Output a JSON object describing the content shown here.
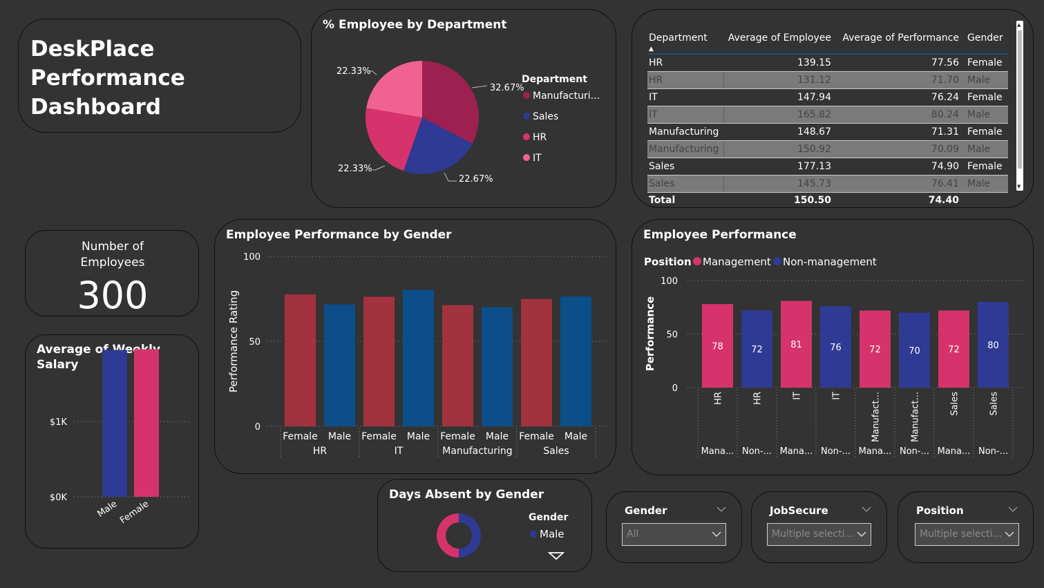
{
  "dashboard": {
    "title_line1": "DeskPlace Performance",
    "title_line2": "Dashboard"
  },
  "kpi": {
    "label_line1": "Number of",
    "label_line2": "Employees",
    "value": "300"
  },
  "colors": {
    "background": "#333333",
    "female": "#a3323f",
    "male": "#0b4e8a",
    "management": "#d6336c",
    "non_management": "#2e3a94",
    "manufacturing": "#9c2050",
    "sales": "#2e3a94",
    "hr": "#d6336c",
    "it": "#f06292"
  },
  "table": {
    "headers": [
      "Department",
      "Average of Employee",
      "Average of Performance",
      "Gender"
    ],
    "rows": [
      [
        "HR",
        "139.15",
        "77.56",
        "Female"
      ],
      [
        "HR",
        "131.12",
        "71.70",
        "Male"
      ],
      [
        "IT",
        "147.94",
        "76.24",
        "Female"
      ],
      [
        "IT",
        "165.82",
        "80.24",
        "Male"
      ],
      [
        "Manufacturing",
        "148.67",
        "71.31",
        "Female"
      ],
      [
        "Manufacturing",
        "150.92",
        "70.09",
        "Male"
      ],
      [
        "Sales",
        "177.13",
        "74.90",
        "Female"
      ],
      [
        "Sales",
        "145.73",
        "76.41",
        "Male"
      ]
    ],
    "total": [
      "Total",
      "150.50",
      "74.40",
      ""
    ]
  },
  "slicers": [
    {
      "title": "Gender",
      "value": "All"
    },
    {
      "title": "JobSecure",
      "value": "Multiple selecti..."
    },
    {
      "title": "Position",
      "value": "Multiple selecti..."
    }
  ],
  "chart_data": [
    {
      "id": "dept_pie",
      "type": "pie",
      "title": "% Employee by Department",
      "legend_title": "Department",
      "legend_position": "right",
      "slices": [
        {
          "label": "Manufacturing",
          "legend_label": "Manufacturi...",
          "value": 32.67,
          "data_label": "32.67%"
        },
        {
          "label": "Sales",
          "legend_label": "Sales",
          "value": 22.67,
          "data_label": "22.67%"
        },
        {
          "label": "HR",
          "legend_label": "HR",
          "value": 22.33,
          "data_label": "22.33%"
        },
        {
          "label": "IT",
          "legend_label": "IT",
          "value": 22.33,
          "data_label": "22.33%"
        }
      ]
    },
    {
      "id": "perf_gender",
      "type": "bar",
      "title": "Employee Performance by Gender",
      "ylabel": "Performance Rating",
      "ylim": [
        0,
        100
      ],
      "yticks": [
        0,
        50,
        100
      ],
      "grid": true,
      "groups": [
        "HR",
        "IT",
        "Manufacturing",
        "Sales"
      ],
      "bars": [
        {
          "group": "HR",
          "gender": "Female",
          "value": 77.56
        },
        {
          "group": "HR",
          "gender": "Male",
          "value": 71.7
        },
        {
          "group": "IT",
          "gender": "Female",
          "value": 76.24
        },
        {
          "group": "IT",
          "gender": "Male",
          "value": 80.24
        },
        {
          "group": "Manufacturing",
          "gender": "Female",
          "value": 71.31
        },
        {
          "group": "Manufacturing",
          "gender": "Male",
          "value": 70.09
        },
        {
          "group": "Sales",
          "gender": "Female",
          "value": 74.9
        },
        {
          "group": "Sales",
          "gender": "Male",
          "value": 76.41
        }
      ]
    },
    {
      "id": "perf_position",
      "type": "bar",
      "title": "Employee Performance",
      "legend_title": "Position",
      "legend": [
        "Management",
        "Non-management"
      ],
      "ylabel": "Performance",
      "ylim": [
        0,
        100
      ],
      "yticks": [
        0,
        50,
        100
      ],
      "grid": true,
      "bars": [
        {
          "dept": "HR",
          "position": "Management",
          "dept_label": "HR",
          "pos_label": "Mana...",
          "value": 78
        },
        {
          "dept": "HR",
          "position": "Non-management",
          "dept_label": "HR",
          "pos_label": "Non-...",
          "value": 72
        },
        {
          "dept": "IT",
          "position": "Management",
          "dept_label": "IT",
          "pos_label": "Mana...",
          "value": 81
        },
        {
          "dept": "IT",
          "position": "Non-management",
          "dept_label": "IT",
          "pos_label": "Non-...",
          "value": 76
        },
        {
          "dept": "Manufacturing",
          "position": "Management",
          "dept_label": "Manufact...",
          "pos_label": "Mana...",
          "value": 72
        },
        {
          "dept": "Manufacturing",
          "position": "Non-management",
          "dept_label": "Manufact...",
          "pos_label": "Non-...",
          "value": 70
        },
        {
          "dept": "Sales",
          "position": "Management",
          "dept_label": "Sales",
          "pos_label": "Mana...",
          "value": 72
        },
        {
          "dept": "Sales",
          "position": "Non-management",
          "dept_label": "Sales",
          "pos_label": "Non-...",
          "value": 80
        }
      ]
    },
    {
      "id": "weekly_salary",
      "type": "bar",
      "title": "Average of Weekly Salary",
      "categories": [
        "Male",
        "Female"
      ],
      "values": [
        1950,
        1960
      ],
      "yticks": [
        "$0K",
        "$1K"
      ],
      "ytick_values": [
        0,
        1000
      ],
      "ylim": [
        0,
        2000
      ],
      "grid": true
    },
    {
      "id": "days_absent",
      "type": "pie",
      "title": "Days Absent by Gender",
      "donut": true,
      "legend_title": "Gender",
      "legend": [
        "Male"
      ],
      "slices": [
        {
          "label": "Male",
          "value": 50
        },
        {
          "label": "Female",
          "value": 50
        }
      ]
    }
  ]
}
